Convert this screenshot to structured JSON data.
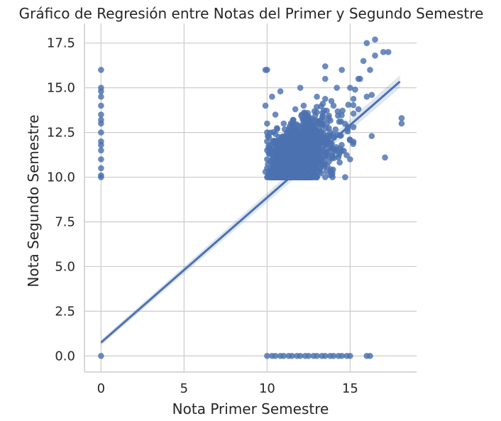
{
  "chart_data": {
    "type": "scatter",
    "title": "Gráfico de Regresión entre Notas del Primer y Segundo Semestre",
    "xlabel": "Nota Primer Semestre",
    "ylabel": "Nota Segundo Semestre",
    "xlim": [
      -1,
      19
    ],
    "ylim": [
      -0.9,
      18.6
    ],
    "xticks": [
      0,
      5,
      10,
      15
    ],
    "xtick_labels": [
      "0",
      "5",
      "10",
      "15"
    ],
    "yticks": [
      0.0,
      2.5,
      5.0,
      7.5,
      10.0,
      12.5,
      15.0,
      17.5
    ],
    "ytick_labels": [
      "0.0",
      "2.5",
      "5.0",
      "7.5",
      "10.0",
      "12.5",
      "15.0",
      "17.5"
    ],
    "grid": true,
    "point_color": "#4c72b0",
    "regression_line": {
      "x": [
        0,
        18
      ],
      "y": [
        0.75,
        15.35
      ],
      "ci_band": true
    },
    "series": [
      {
        "points": [
          [
            0,
            16
          ],
          [
            0,
            15
          ],
          [
            0,
            14.8
          ],
          [
            0,
            14.5
          ],
          [
            0,
            14
          ],
          [
            0,
            13.5
          ],
          [
            0,
            13.2
          ],
          [
            0,
            13
          ],
          [
            0,
            12.5
          ],
          [
            0,
            12
          ],
          [
            0,
            11.8
          ],
          [
            0,
            11.5
          ],
          [
            0,
            11
          ],
          [
            0,
            10.5
          ],
          [
            0,
            10.1
          ],
          [
            0,
            10
          ],
          [
            0,
            0
          ],
          [
            9.9,
            16
          ],
          [
            10,
            16
          ],
          [
            9.9,
            14
          ],
          [
            10,
            13
          ],
          [
            10,
            12.5
          ],
          [
            10,
            12
          ],
          [
            10,
            11.5
          ],
          [
            10,
            11
          ],
          [
            10,
            10.5
          ],
          [
            10,
            10
          ],
          [
            9.9,
            10.3
          ],
          [
            10.3,
            14.5
          ],
          [
            10.5,
            13.5
          ],
          [
            10.7,
            12
          ],
          [
            10.8,
            14.8
          ],
          [
            11,
            13
          ],
          [
            11.2,
            12.5
          ],
          [
            11.5,
            11
          ],
          [
            11.3,
            10.2
          ],
          [
            11.7,
            13.8
          ],
          [
            12,
            15
          ],
          [
            12.2,
            14
          ],
          [
            12.5,
            12
          ],
          [
            12.8,
            11.5
          ],
          [
            13,
            14.5
          ],
          [
            13.2,
            13
          ],
          [
            13.5,
            15.5
          ],
          [
            13.5,
            16.2
          ],
          [
            13.8,
            12.5
          ],
          [
            14,
            14
          ],
          [
            14.2,
            15
          ],
          [
            14.5,
            16
          ],
          [
            14.5,
            11.5
          ],
          [
            14.7,
            10
          ],
          [
            15,
            15
          ],
          [
            15,
            11
          ],
          [
            15.2,
            12.8
          ],
          [
            15.5,
            15.5
          ],
          [
            15.5,
            13.8
          ],
          [
            15.8,
            16.5
          ],
          [
            16,
            14.5
          ],
          [
            16.2,
            16
          ],
          [
            16.5,
            17.7
          ],
          [
            16,
            17.5
          ],
          [
            16.5,
            16.8
          ],
          [
            17,
            17
          ],
          [
            17.3,
            17
          ],
          [
            16.3,
            12.3
          ],
          [
            17.1,
            11.1
          ],
          [
            18.1,
            13.3
          ],
          [
            18.1,
            13
          ],
          [
            15.6,
            15.5
          ],
          [
            16.3,
            14.6
          ],
          [
            15.3,
            14.9
          ],
          [
            10,
            0
          ],
          [
            10.3,
            0
          ],
          [
            10.5,
            0
          ],
          [
            10.8,
            0
          ],
          [
            11,
            0
          ],
          [
            11.3,
            0
          ],
          [
            11.5,
            0
          ],
          [
            11.8,
            0
          ],
          [
            12,
            0
          ],
          [
            12.3,
            0
          ],
          [
            12.5,
            0
          ],
          [
            12.8,
            0
          ],
          [
            13,
            0
          ],
          [
            13.3,
            0
          ],
          [
            13.5,
            0
          ],
          [
            13.8,
            0
          ],
          [
            14,
            0
          ],
          [
            14.3,
            0
          ],
          [
            14.5,
            0
          ],
          [
            14.8,
            0
          ],
          [
            15,
            0
          ],
          [
            16,
            0
          ],
          [
            16.2,
            0
          ]
        ]
      }
    ]
  }
}
